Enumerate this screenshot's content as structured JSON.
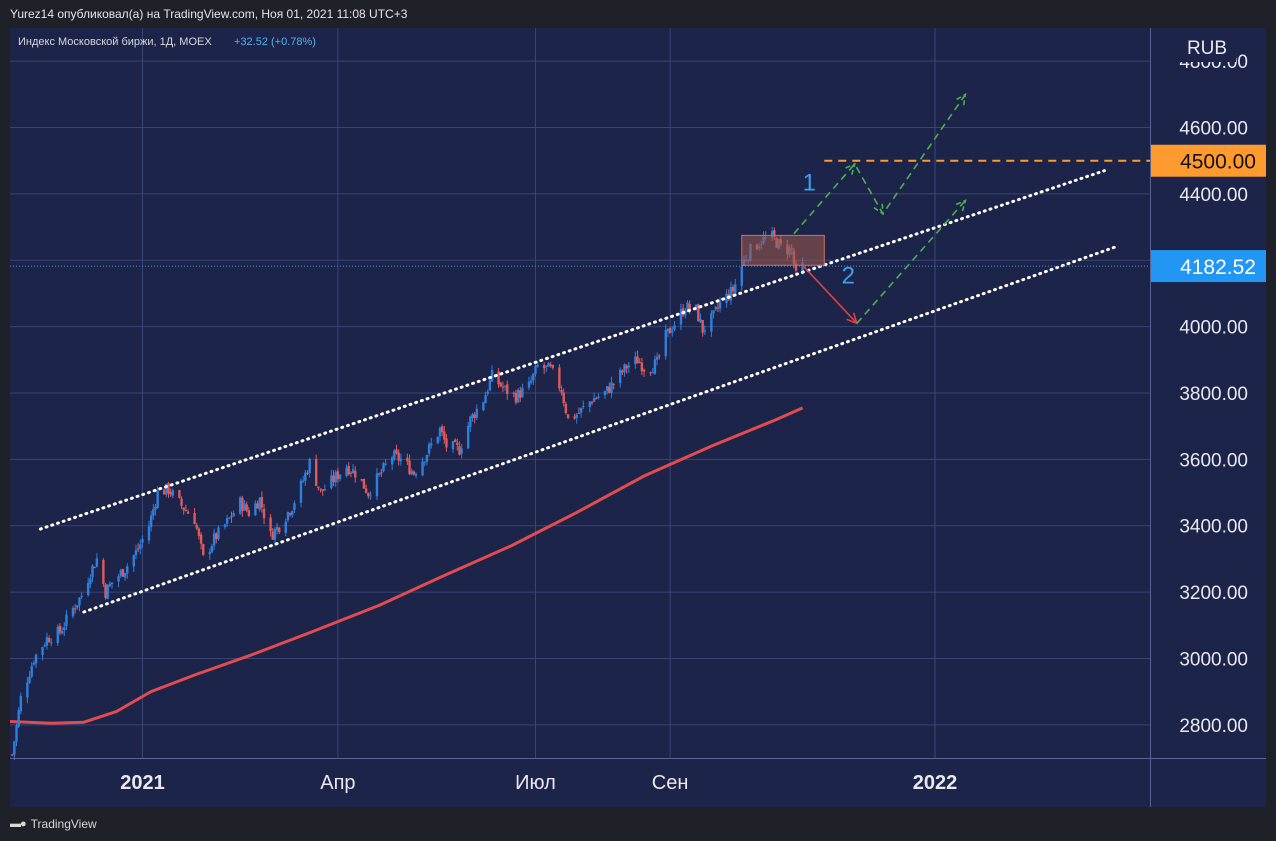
{
  "header": {
    "publish_line": "Yurez14 опубликовал(а) на TradingView.com, Ноя 01, 2021 11:08 UTC+3"
  },
  "legend": {
    "symbol": "Индекс Московской биржи, 1Д, MOEX",
    "change": "+32.52 (+0.78%)",
    "change_color": "#26a69a"
  },
  "currency": "RUB",
  "footer": {
    "brand": "TradingView",
    "logo_icon": "tradingview-logo-icon"
  },
  "colors": {
    "background": "#1c2449",
    "grid": "#3a4575",
    "candle_up": "#2f7fdc",
    "candle_down": "#e05a5a",
    "moving_average": "#e04c50",
    "resistance_line": "#ff9a2e",
    "forecast_arrows": "#4caf50",
    "down_arrow": "#e04040",
    "current_price_tag": "#2196f3",
    "consolidation_box": "#a35a4a"
  },
  "chart_data": {
    "type": "candlestick",
    "title": "",
    "ylim": [
      2700,
      4900
    ],
    "y_ticks": [
      "2800.00",
      "3000.00",
      "3200.00",
      "3400.00",
      "3600.00",
      "3800.00",
      "4000.00",
      "4200.00",
      "4400.00",
      "4600.00",
      "4800.00"
    ],
    "x_ticks": [
      {
        "label": "2021",
        "date": "2021-01-01",
        "bold": true
      },
      {
        "label": "Апр",
        "date": "2021-04-01",
        "bold": false
      },
      {
        "label": "Июл",
        "date": "2021-07-01",
        "bold": false
      },
      {
        "label": "Сен",
        "date": "2021-09-01",
        "bold": false
      },
      {
        "label": "2022",
        "date": "2022-01-01",
        "bold": true
      }
    ],
    "xlim": [
      "2020-11-01",
      "2022-04-10"
    ],
    "last_price": "4182.52",
    "last_price_value": 4182.52,
    "resistance_level": "4500.00",
    "resistance_value": 4500,
    "close_path": [
      [
        "2020-11-02",
        2710
      ],
      [
        "2020-11-06",
        2880
      ],
      [
        "2020-11-12",
        3000
      ],
      [
        "2020-11-18",
        3060
      ],
      [
        "2020-11-24",
        3080
      ],
      [
        "2020-11-30",
        3150
      ],
      [
        "2020-12-04",
        3190
      ],
      [
        "2020-12-08",
        3260
      ],
      [
        "2020-12-11",
        3300
      ],
      [
        "2020-12-15",
        3200
      ],
      [
        "2020-12-18",
        3230
      ],
      [
        "2020-12-24",
        3270
      ],
      [
        "2020-12-30",
        3330
      ],
      [
        "2021-01-04",
        3400
      ],
      [
        "2021-01-08",
        3500
      ],
      [
        "2021-01-13",
        3510
      ],
      [
        "2021-01-19",
        3460
      ],
      [
        "2021-01-25",
        3420
      ],
      [
        "2021-01-29",
        3300
      ],
      [
        "2021-02-03",
        3360
      ],
      [
        "2021-02-09",
        3410
      ],
      [
        "2021-02-15",
        3470
      ],
      [
        "2021-02-19",
        3440
      ],
      [
        "2021-02-24",
        3480
      ],
      [
        "2021-03-01",
        3370
      ],
      [
        "2021-03-05",
        3400
      ],
      [
        "2021-03-11",
        3460
      ],
      [
        "2021-03-15",
        3520
      ],
      [
        "2021-03-19",
        3590
      ],
      [
        "2021-03-24",
        3500
      ],
      [
        "2021-03-30",
        3540
      ],
      [
        "2021-04-05",
        3580
      ],
      [
        "2021-04-09",
        3560
      ],
      [
        "2021-04-15",
        3500
      ],
      [
        "2021-04-21",
        3560
      ],
      [
        "2021-04-26",
        3610
      ],
      [
        "2021-04-30",
        3600
      ],
      [
        "2021-05-06",
        3560
      ],
      [
        "2021-05-12",
        3620
      ],
      [
        "2021-05-18",
        3690
      ],
      [
        "2021-05-21",
        3640
      ],
      [
        "2021-05-27",
        3630
      ],
      [
        "2021-06-01",
        3720
      ],
      [
        "2021-06-07",
        3780
      ],
      [
        "2021-06-11",
        3850
      ],
      [
        "2021-06-17",
        3810
      ],
      [
        "2021-06-22",
        3790
      ],
      [
        "2021-06-28",
        3820
      ],
      [
        "2021-07-02",
        3880
      ],
      [
        "2021-07-08",
        3870
      ],
      [
        "2021-07-13",
        3810
      ],
      [
        "2021-07-16",
        3720
      ],
      [
        "2021-07-21",
        3740
      ],
      [
        "2021-07-27",
        3780
      ],
      [
        "2021-08-02",
        3800
      ],
      [
        "2021-08-06",
        3830
      ],
      [
        "2021-08-12",
        3880
      ],
      [
        "2021-08-17",
        3900
      ],
      [
        "2021-08-21",
        3870
      ],
      [
        "2021-08-26",
        3890
      ],
      [
        "2021-08-30",
        3970
      ],
      [
        "2021-09-03",
        4010
      ],
      [
        "2021-09-08",
        4060
      ],
      [
        "2021-09-13",
        4050
      ],
      [
        "2021-09-16",
        3990
      ],
      [
        "2021-09-21",
        4030
      ],
      [
        "2021-09-24",
        4070
      ],
      [
        "2021-09-30",
        4110
      ],
      [
        "2021-10-05",
        4200
      ],
      [
        "2021-10-08",
        4230
      ],
      [
        "2021-10-13",
        4260
      ],
      [
        "2021-10-18",
        4270
      ],
      [
        "2021-10-22",
        4240
      ],
      [
        "2021-10-27",
        4230
      ],
      [
        "2021-10-29",
        4150
      ],
      [
        "2021-11-01",
        4182.52
      ]
    ],
    "moving_average": [
      [
        "2020-11-01",
        2810
      ],
      [
        "2020-11-20",
        2805
      ],
      [
        "2020-12-05",
        2808
      ],
      [
        "2020-12-20",
        2840
      ],
      [
        "2021-01-05",
        2900
      ],
      [
        "2021-01-25",
        2950
      ],
      [
        "2021-02-20",
        3010
      ],
      [
        "2021-03-20",
        3080
      ],
      [
        "2021-04-20",
        3160
      ],
      [
        "2021-05-20",
        3250
      ],
      [
        "2021-06-20",
        3340
      ],
      [
        "2021-07-20",
        3440
      ],
      [
        "2021-08-20",
        3550
      ],
      [
        "2021-09-20",
        3640
      ],
      [
        "2021-10-20",
        3720
      ],
      [
        "2021-11-01",
        3755
      ]
    ],
    "channel_upper": [
      [
        "2020-11-15",
        3390
      ],
      [
        "2022-03-20",
        4470
      ]
    ],
    "channel_lower": [
      [
        "2020-12-05",
        3140
      ],
      [
        "2022-03-25",
        4240
      ]
    ],
    "consolidation_box": {
      "x0": "2021-10-04",
      "x1": "2021-11-11",
      "y0": 4185,
      "y1": 4275
    },
    "annotations": [
      {
        "label": "1",
        "date": "2021-11-01",
        "value": 4410
      },
      {
        "label": "2",
        "date": "2021-11-19",
        "value": 4130
      }
    ],
    "scenario_1_path": [
      [
        "2021-10-28",
        4280
      ],
      [
        "2021-11-25",
        4490
      ],
      [
        "2021-12-08",
        4340
      ],
      [
        "2022-01-15",
        4700
      ]
    ],
    "scenario_2_path": [
      [
        "2021-11-01",
        4185
      ],
      [
        "2021-11-26",
        4010
      ],
      [
        "2022-01-15",
        4380
      ]
    ]
  }
}
